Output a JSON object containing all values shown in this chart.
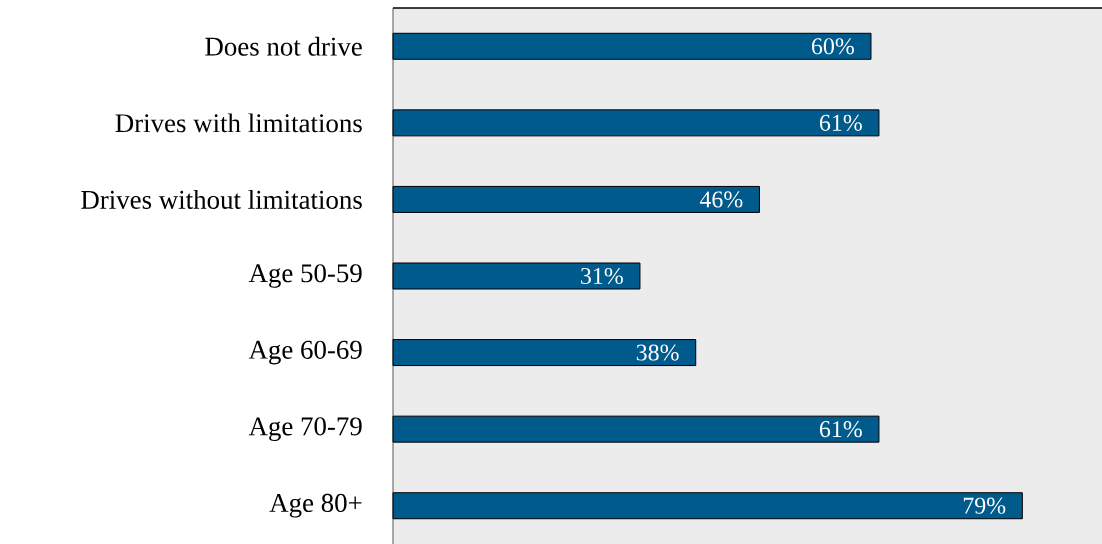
{
  "chart_data": {
    "type": "bar",
    "orientation": "horizontal",
    "categories": [
      "Does not drive",
      "Drives with limitations",
      "Drives without limitations",
      "Age 50-59",
      "Age 60-69",
      "Age 70-79",
      "Age 80+"
    ],
    "values": [
      60,
      61,
      46,
      31,
      38,
      61,
      79
    ],
    "value_labels": [
      "60%",
      "61%",
      "46%",
      "31%",
      "38%",
      "61%",
      "79%"
    ],
    "color": "#005a8c",
    "xlim": [
      0,
      89
    ]
  }
}
